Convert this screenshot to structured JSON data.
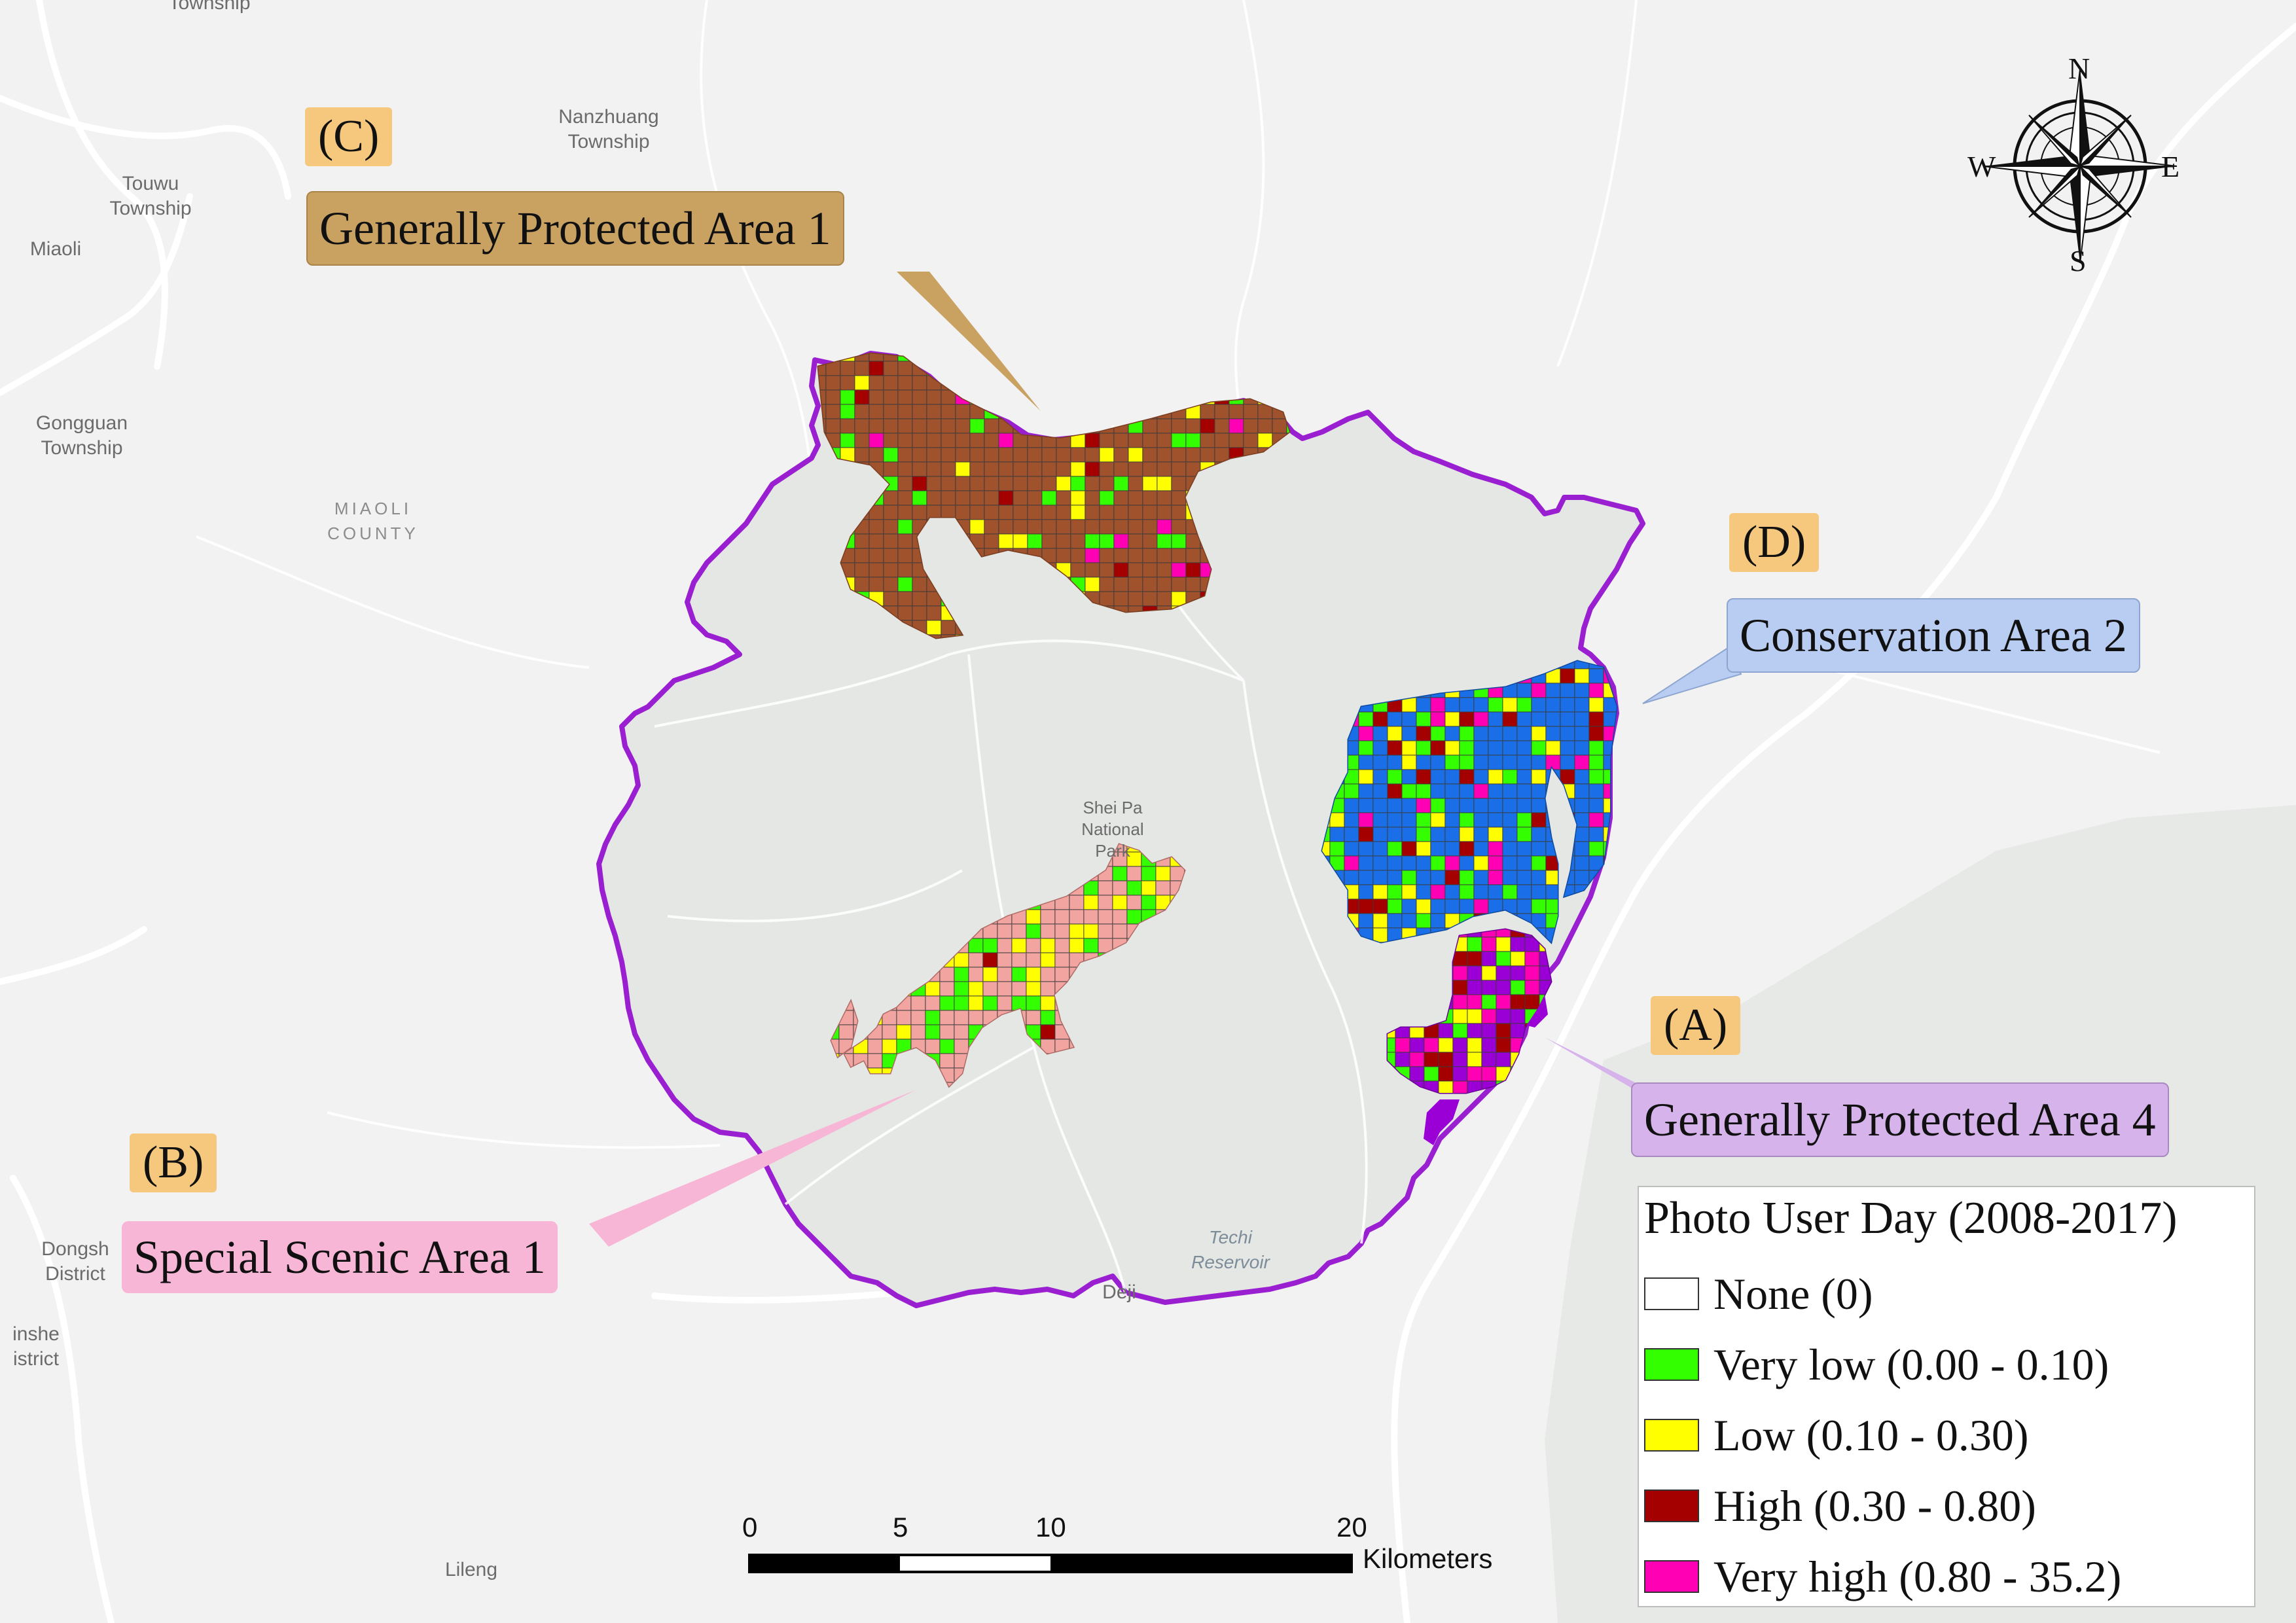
{
  "place_labels": {
    "township_top": "Township",
    "nanzhuang": "Nanzhuang\nTownship",
    "touwu": "Touwu\nTownship",
    "miaoli": "Miaoli",
    "gongguan": "Gongguan\nTownship",
    "miaoli_county": "MIAOLI\nCOUNTY",
    "shei_pa": "Shei Pa\nNational\nPark",
    "techi": "Techi\nReservoir",
    "deji": "Deji",
    "dongsh": "Dongsh\nDistrict",
    "inshe": "inshe\nistrict",
    "lileng": "Lileng"
  },
  "area_tags": {
    "a": "(A)",
    "b": "(B)",
    "c": "(C)",
    "d": "(D)"
  },
  "callouts": {
    "gpa1": {
      "label": "Generally Protected Area 1",
      "color": "#c9a262"
    },
    "ssa1": {
      "label": "Special Scenic Area 1",
      "color": "#f8b6d6"
    },
    "ca2": {
      "label": "Conservation Area 2",
      "color": "#b9cdf2"
    },
    "gpa4": {
      "label": "Generally Protected Area 4",
      "color": "#d6b3ea"
    }
  },
  "legend": {
    "title": "Photo User Day (2008-2017)",
    "items": [
      {
        "label": "None (0)",
        "color": "#ffffff"
      },
      {
        "label": "Very low (0.00 - 0.10)",
        "color": "#33ff00"
      },
      {
        "label": "Low (0.10 - 0.30)",
        "color": "#ffff00"
      },
      {
        "label": "High (0.30 - 0.80)",
        "color": "#a50000"
      },
      {
        "label": "Very high (0.80 - 35.2)",
        "color": "#ff00b4"
      }
    ]
  },
  "scale_bar": {
    "ticks": [
      "0",
      "5",
      "10",
      "20"
    ],
    "unit": "Kilometers"
  },
  "compass": {
    "n": "N",
    "s": "S",
    "e": "E",
    "w": "W"
  },
  "colors": {
    "park_boundary": "#9a1fd1",
    "park_fill": "#e4e7e4",
    "gpa1_fill": "#a0522d",
    "ssa1_fill": "#f2a5a0",
    "ca2_fill": "#1a6fe8",
    "gpa4_fill": "#9a00d6"
  }
}
